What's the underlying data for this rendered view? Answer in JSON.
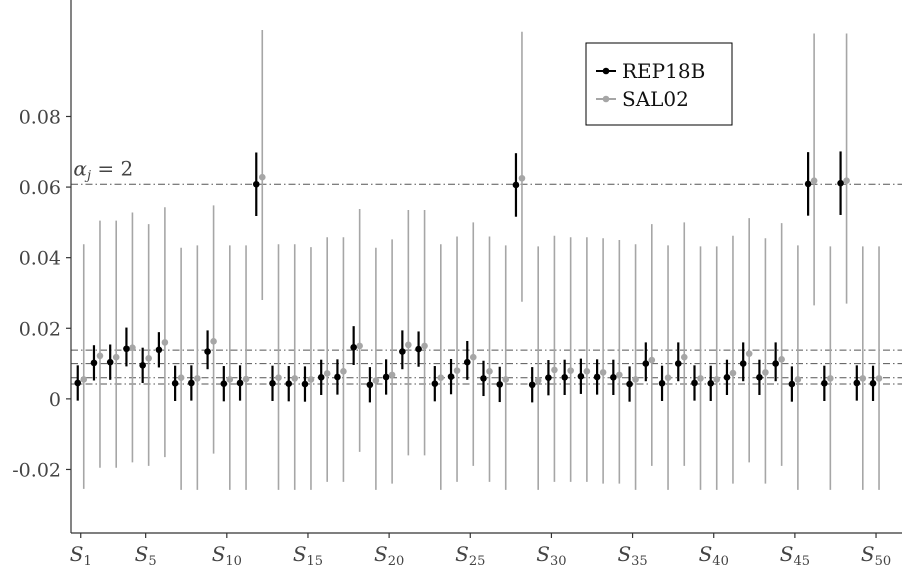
{
  "chart_data": {
    "type": "scatter",
    "title": "",
    "xlabel": "",
    "ylabel": "",
    "ylim": [
      -0.038,
      0.113
    ],
    "yticks": [
      -0.02,
      0,
      0.02,
      0.04,
      0.06,
      0.08
    ],
    "ytick_labels": [
      "-0.02",
      "0",
      "0.02",
      "0.04",
      "0.06",
      "0.08"
    ],
    "xlim": [
      0.4,
      51.6
    ],
    "xtick_positions": [
      1,
      5,
      10,
      15,
      20,
      25,
      30,
      35,
      40,
      45,
      50
    ],
    "xtick_labels": [
      {
        "base": "S",
        "sub": "1"
      },
      {
        "base": "S",
        "sub": "5"
      },
      {
        "base": "S",
        "sub": "10"
      },
      {
        "base": "S",
        "sub": "15"
      },
      {
        "base": "S",
        "sub": "20"
      },
      {
        "base": "S",
        "sub": "25"
      },
      {
        "base": "S",
        "sub": "30"
      },
      {
        "base": "S",
        "sub": "35"
      },
      {
        "base": "S",
        "sub": "40"
      },
      {
        "base": "S",
        "sub": "45"
      },
      {
        "base": "S",
        "sub": "50"
      }
    ],
    "reference_lines": [
      0.0042,
      0.006,
      0.01,
      0.0138,
      0.0608
    ],
    "annotation": {
      "text": "α_j = 2",
      "base": "α",
      "sub": "j",
      "rest": " = 2",
      "y": 0.0608,
      "x": 0.55
    },
    "legend": {
      "position": "top-right",
      "entries": [
        "REP18B",
        "SAL02"
      ]
    },
    "grid": false,
    "x": [
      1,
      2,
      3,
      4,
      5,
      6,
      7,
      8,
      9,
      10,
      11,
      12,
      13,
      14,
      15,
      16,
      17,
      18,
      19,
      20,
      21,
      22,
      23,
      24,
      25,
      26,
      27,
      28,
      29,
      30,
      31,
      32,
      33,
      34,
      35,
      36,
      37,
      38,
      39,
      40,
      41,
      42,
      43,
      44,
      45,
      46,
      47,
      48,
      49,
      50
    ],
    "series": [
      {
        "name": "REP18B",
        "color": "#000000",
        "values": [
          0.0045,
          0.0102,
          0.0104,
          0.0142,
          0.0095,
          0.0139,
          0.0044,
          0.0045,
          0.0134,
          0.0043,
          0.0045,
          0.0608,
          0.0044,
          0.0043,
          0.0042,
          0.0061,
          0.0062,
          0.0146,
          0.004,
          0.0062,
          0.0134,
          0.0141,
          0.0043,
          0.0063,
          0.0104,
          0.0058,
          0.0041,
          0.0606,
          0.004,
          0.006,
          0.0061,
          0.0064,
          0.0062,
          0.0061,
          0.0042,
          0.01,
          0.0044,
          0.01,
          0.0045,
          0.0044,
          0.0061,
          0.01,
          0.0061,
          0.01,
          0.0042,
          0.0609,
          0.0044,
          0.0611,
          0.0045,
          0.0044
        ],
        "lower": [
          -0.0005,
          0.0052,
          0.0054,
          0.0092,
          0.0045,
          0.0089,
          -0.0006,
          -0.0005,
          0.0084,
          -0.0007,
          -0.0005,
          0.0518,
          -0.0006,
          -0.0007,
          -0.0008,
          0.0011,
          0.0012,
          0.0096,
          -0.001,
          0.0012,
          0.0084,
          0.0091,
          -0.0007,
          0.0013,
          0.0054,
          0.0008,
          -0.0009,
          0.0516,
          -0.001,
          0.001,
          0.0011,
          0.0014,
          0.0012,
          0.0011,
          -0.0008,
          0.005,
          -0.0006,
          0.005,
          -0.0005,
          -0.0006,
          0.0011,
          0.005,
          0.0011,
          0.005,
          -0.0008,
          0.0519,
          -0.0006,
          0.0521,
          -0.0005,
          -0.0006
        ],
        "upper": [
          0.0095,
          0.0152,
          0.0154,
          0.0202,
          0.0145,
          0.0189,
          0.0094,
          0.0095,
          0.0194,
          0.0093,
          0.0095,
          0.0698,
          0.0094,
          0.0093,
          0.0092,
          0.0111,
          0.0112,
          0.0206,
          0.009,
          0.0112,
          0.0194,
          0.0191,
          0.0093,
          0.0113,
          0.0164,
          0.0108,
          0.0091,
          0.0696,
          0.009,
          0.011,
          0.0111,
          0.0114,
          0.0112,
          0.0111,
          0.0092,
          0.016,
          0.0094,
          0.016,
          0.0095,
          0.0094,
          0.0111,
          0.016,
          0.0111,
          0.016,
          0.0092,
          0.0699,
          0.0094,
          0.0701,
          0.0095,
          0.0094
        ]
      },
      {
        "name": "SAL02",
        "color": "#a6a6a6",
        "values": [
          0.0055,
          0.0122,
          0.0118,
          0.0145,
          0.0115,
          0.016,
          0.006,
          0.0058,
          0.0163,
          0.0055,
          0.0056,
          0.0628,
          0.006,
          0.0058,
          0.0055,
          0.0072,
          0.0078,
          0.015,
          0.0052,
          0.0068,
          0.0153,
          0.015,
          0.006,
          0.008,
          0.0118,
          0.0078,
          0.0055,
          0.0625,
          0.0052,
          0.0082,
          0.008,
          0.0078,
          0.0075,
          0.0068,
          0.0055,
          0.011,
          0.006,
          0.0118,
          0.0058,
          0.0055,
          0.0073,
          0.0128,
          0.0075,
          0.0112,
          0.0055,
          0.0618,
          0.0058,
          0.0618,
          0.0058,
          0.0058
        ],
        "lower": [
          -0.0255,
          -0.0195,
          -0.0195,
          -0.018,
          -0.019,
          -0.0165,
          -0.0258,
          -0.0258,
          -0.0155,
          -0.0258,
          -0.0258,
          0.028,
          -0.0258,
          -0.0258,
          -0.0258,
          -0.0235,
          -0.0235,
          -0.015,
          -0.0258,
          -0.024,
          -0.016,
          -0.016,
          -0.0258,
          -0.0235,
          -0.019,
          -0.0235,
          -0.0258,
          0.0275,
          -0.0258,
          -0.0235,
          -0.0235,
          -0.0235,
          -0.024,
          -0.024,
          -0.0258,
          -0.019,
          -0.0258,
          -0.019,
          -0.0258,
          -0.0258,
          -0.024,
          -0.018,
          -0.024,
          -0.019,
          -0.0258,
          0.0265,
          -0.0258,
          0.027,
          -0.0258,
          -0.0258
        ],
        "upper": [
          0.0438,
          0.0505,
          0.0505,
          0.0528,
          0.0495,
          0.0543,
          0.0428,
          0.0435,
          0.0548,
          0.0435,
          0.0435,
          0.1045,
          0.0438,
          0.0438,
          0.043,
          0.0458,
          0.0458,
          0.0538,
          0.0428,
          0.0452,
          0.0535,
          0.0535,
          0.0438,
          0.046,
          0.05,
          0.046,
          0.0435,
          0.104,
          0.0432,
          0.0462,
          0.0458,
          0.0458,
          0.0455,
          0.045,
          0.0438,
          0.0495,
          0.0435,
          0.05,
          0.0432,
          0.0432,
          0.0462,
          0.0512,
          0.0455,
          0.0498,
          0.0435,
          0.1035,
          0.0432,
          0.1035,
          0.0432,
          0.0432
        ]
      }
    ]
  }
}
